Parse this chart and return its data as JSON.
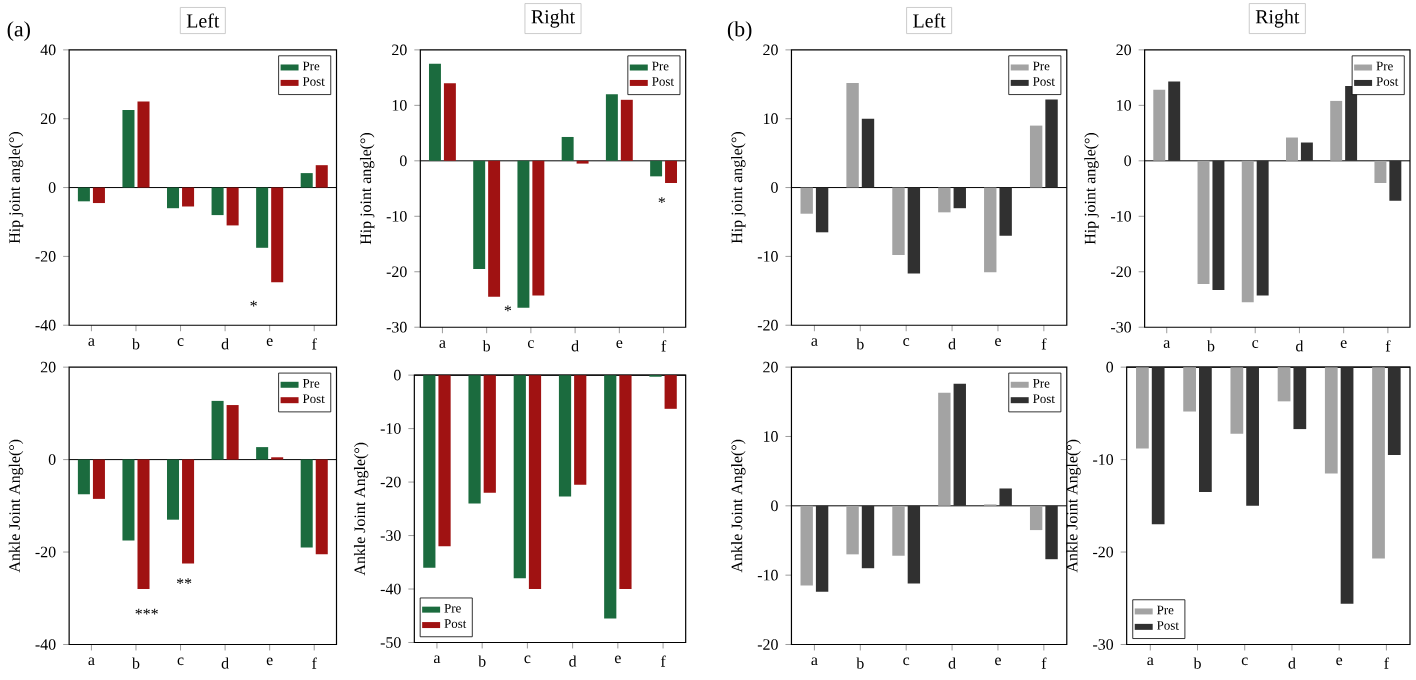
{
  "chart_data": [
    {
      "type": "bar",
      "title": "Left",
      "ylabel": "Hip joint angle(°)",
      "categories": [
        "a",
        "b",
        "c",
        "d",
        "e",
        "f"
      ],
      "ylim": [
        -40,
        40
      ],
      "yticks": [
        -40,
        -20,
        0,
        20,
        40
      ],
      "legend": "top right",
      "annotations": [
        "(a)",
        "*"
      ],
      "series": [
        {
          "name": "Pre",
          "color": "#1b6b3e",
          "values": [
            -4,
            22.5,
            -6,
            -8,
            -17.5,
            4.2
          ]
        },
        {
          "name": "Post",
          "color": "#a01212",
          "values": [
            -4.5,
            25,
            -5.5,
            -11,
            -27.5,
            6.5
          ]
        }
      ]
    },
    {
      "type": "bar",
      "title": "Right",
      "ylabel": "Hip joint angle(°)",
      "categories": [
        "a",
        "b",
        "c",
        "d",
        "e",
        "f"
      ],
      "ylim": [
        -30,
        20
      ],
      "yticks": [
        -30,
        -20,
        -10,
        0,
        10,
        20
      ],
      "legend": "top right",
      "annotations": [
        "*",
        "*"
      ],
      "series": [
        {
          "name": "Pre",
          "color": "#1b6b3e",
          "values": [
            17.5,
            -19.5,
            -26.5,
            4.3,
            12,
            -2.8
          ]
        },
        {
          "name": "Post",
          "color": "#a01212",
          "values": [
            14,
            -24.5,
            -24.3,
            -0.5,
            11,
            -4
          ]
        }
      ]
    },
    {
      "type": "bar",
      "ylabel": "Ankle Joint Angle(°)",
      "categories": [
        "a",
        "b",
        "c",
        "d",
        "e",
        "f"
      ],
      "ylim": [
        -40,
        20
      ],
      "yticks": [
        -40,
        -20,
        0,
        20
      ],
      "legend": "top right",
      "annotations": [
        "***",
        "**"
      ],
      "series": [
        {
          "name": "Pre",
          "color": "#1b6b3e",
          "values": [
            -7.5,
            -17.5,
            -13,
            12.7,
            2.7,
            -19
          ]
        },
        {
          "name": "Post",
          "color": "#a01212",
          "values": [
            -8.5,
            -28,
            -22.5,
            11.8,
            0.5,
            -20.5
          ]
        }
      ]
    },
    {
      "type": "bar",
      "ylabel": "Ankle Joint Angle(°)",
      "categories": [
        "a",
        "b",
        "c",
        "d",
        "e",
        "f"
      ],
      "ylim": [
        -50,
        0
      ],
      "yticks": [
        -50,
        -40,
        -30,
        -20,
        -10,
        0
      ],
      "legend": "bottom left",
      "series": [
        {
          "name": "Pre",
          "color": "#1b6b3e",
          "values": [
            -36,
            -24,
            -38,
            -22.7,
            -45.5,
            -0.3
          ]
        },
        {
          "name": "Post",
          "color": "#a01212",
          "values": [
            -32,
            -22,
            -40,
            -20.5,
            -40,
            -6.3
          ]
        }
      ]
    },
    {
      "type": "bar",
      "title": "Left",
      "ylabel": "Hip joint angle(°)",
      "categories": [
        "a",
        "b",
        "c",
        "d",
        "e",
        "f"
      ],
      "ylim": [
        -20,
        20
      ],
      "yticks": [
        -20,
        -10,
        0,
        10,
        20
      ],
      "legend": "top right",
      "annotations": [
        "(b)"
      ],
      "series": [
        {
          "name": "Pre",
          "color": "#a3a3a3",
          "values": [
            -3.8,
            15.2,
            -9.8,
            -3.6,
            -12.3,
            9
          ]
        },
        {
          "name": "Post",
          "color": "#303030",
          "values": [
            -6.5,
            10,
            -12.5,
            -3,
            -7,
            12.8
          ]
        }
      ]
    },
    {
      "type": "bar",
      "title": "Right",
      "ylabel": "Hip joint angle(°)",
      "categories": [
        "a",
        "b",
        "c",
        "d",
        "e",
        "f"
      ],
      "ylim": [
        -30,
        20
      ],
      "yticks": [
        -30,
        -20,
        -10,
        0,
        10,
        20
      ],
      "legend": "top right",
      "series": [
        {
          "name": "Pre",
          "color": "#a3a3a3",
          "values": [
            12.8,
            -22.2,
            -25.5,
            4.2,
            10.8,
            -4
          ]
        },
        {
          "name": "Post",
          "color": "#303030",
          "values": [
            14.3,
            -23.3,
            -24.3,
            3.3,
            13.5,
            -7.2
          ]
        }
      ]
    },
    {
      "type": "bar",
      "ylabel": "Ankle Joint Angle(°)",
      "categories": [
        "a",
        "b",
        "c",
        "d",
        "e",
        "f"
      ],
      "ylim": [
        -20,
        20
      ],
      "yticks": [
        -20,
        -10,
        0,
        10,
        20
      ],
      "legend": "top right",
      "series": [
        {
          "name": "Pre",
          "color": "#a3a3a3",
          "values": [
            -11.5,
            -7,
            -7.2,
            16.3,
            0.2,
            -3.5
          ]
        },
        {
          "name": "Post",
          "color": "#303030",
          "values": [
            -12.4,
            -9,
            -11.2,
            17.6,
            2.5,
            -7.7
          ]
        }
      ]
    },
    {
      "type": "bar",
      "ylabel": "Ankle Joint Angle(°)",
      "categories": [
        "a",
        "b",
        "c",
        "d",
        "e",
        "f"
      ],
      "ylim": [
        -30,
        0
      ],
      "yticks": [
        -30,
        -20,
        -10,
        0
      ],
      "legend": "bottom left",
      "series": [
        {
          "name": "Pre",
          "color": "#a3a3a3",
          "values": [
            -8.8,
            -4.8,
            -7.2,
            -3.7,
            -11.5,
            -20.7
          ]
        },
        {
          "name": "Post",
          "color": "#303030",
          "values": [
            -17,
            -13.5,
            -15,
            -6.7,
            -25.6,
            -9.5
          ]
        }
      ]
    }
  ]
}
